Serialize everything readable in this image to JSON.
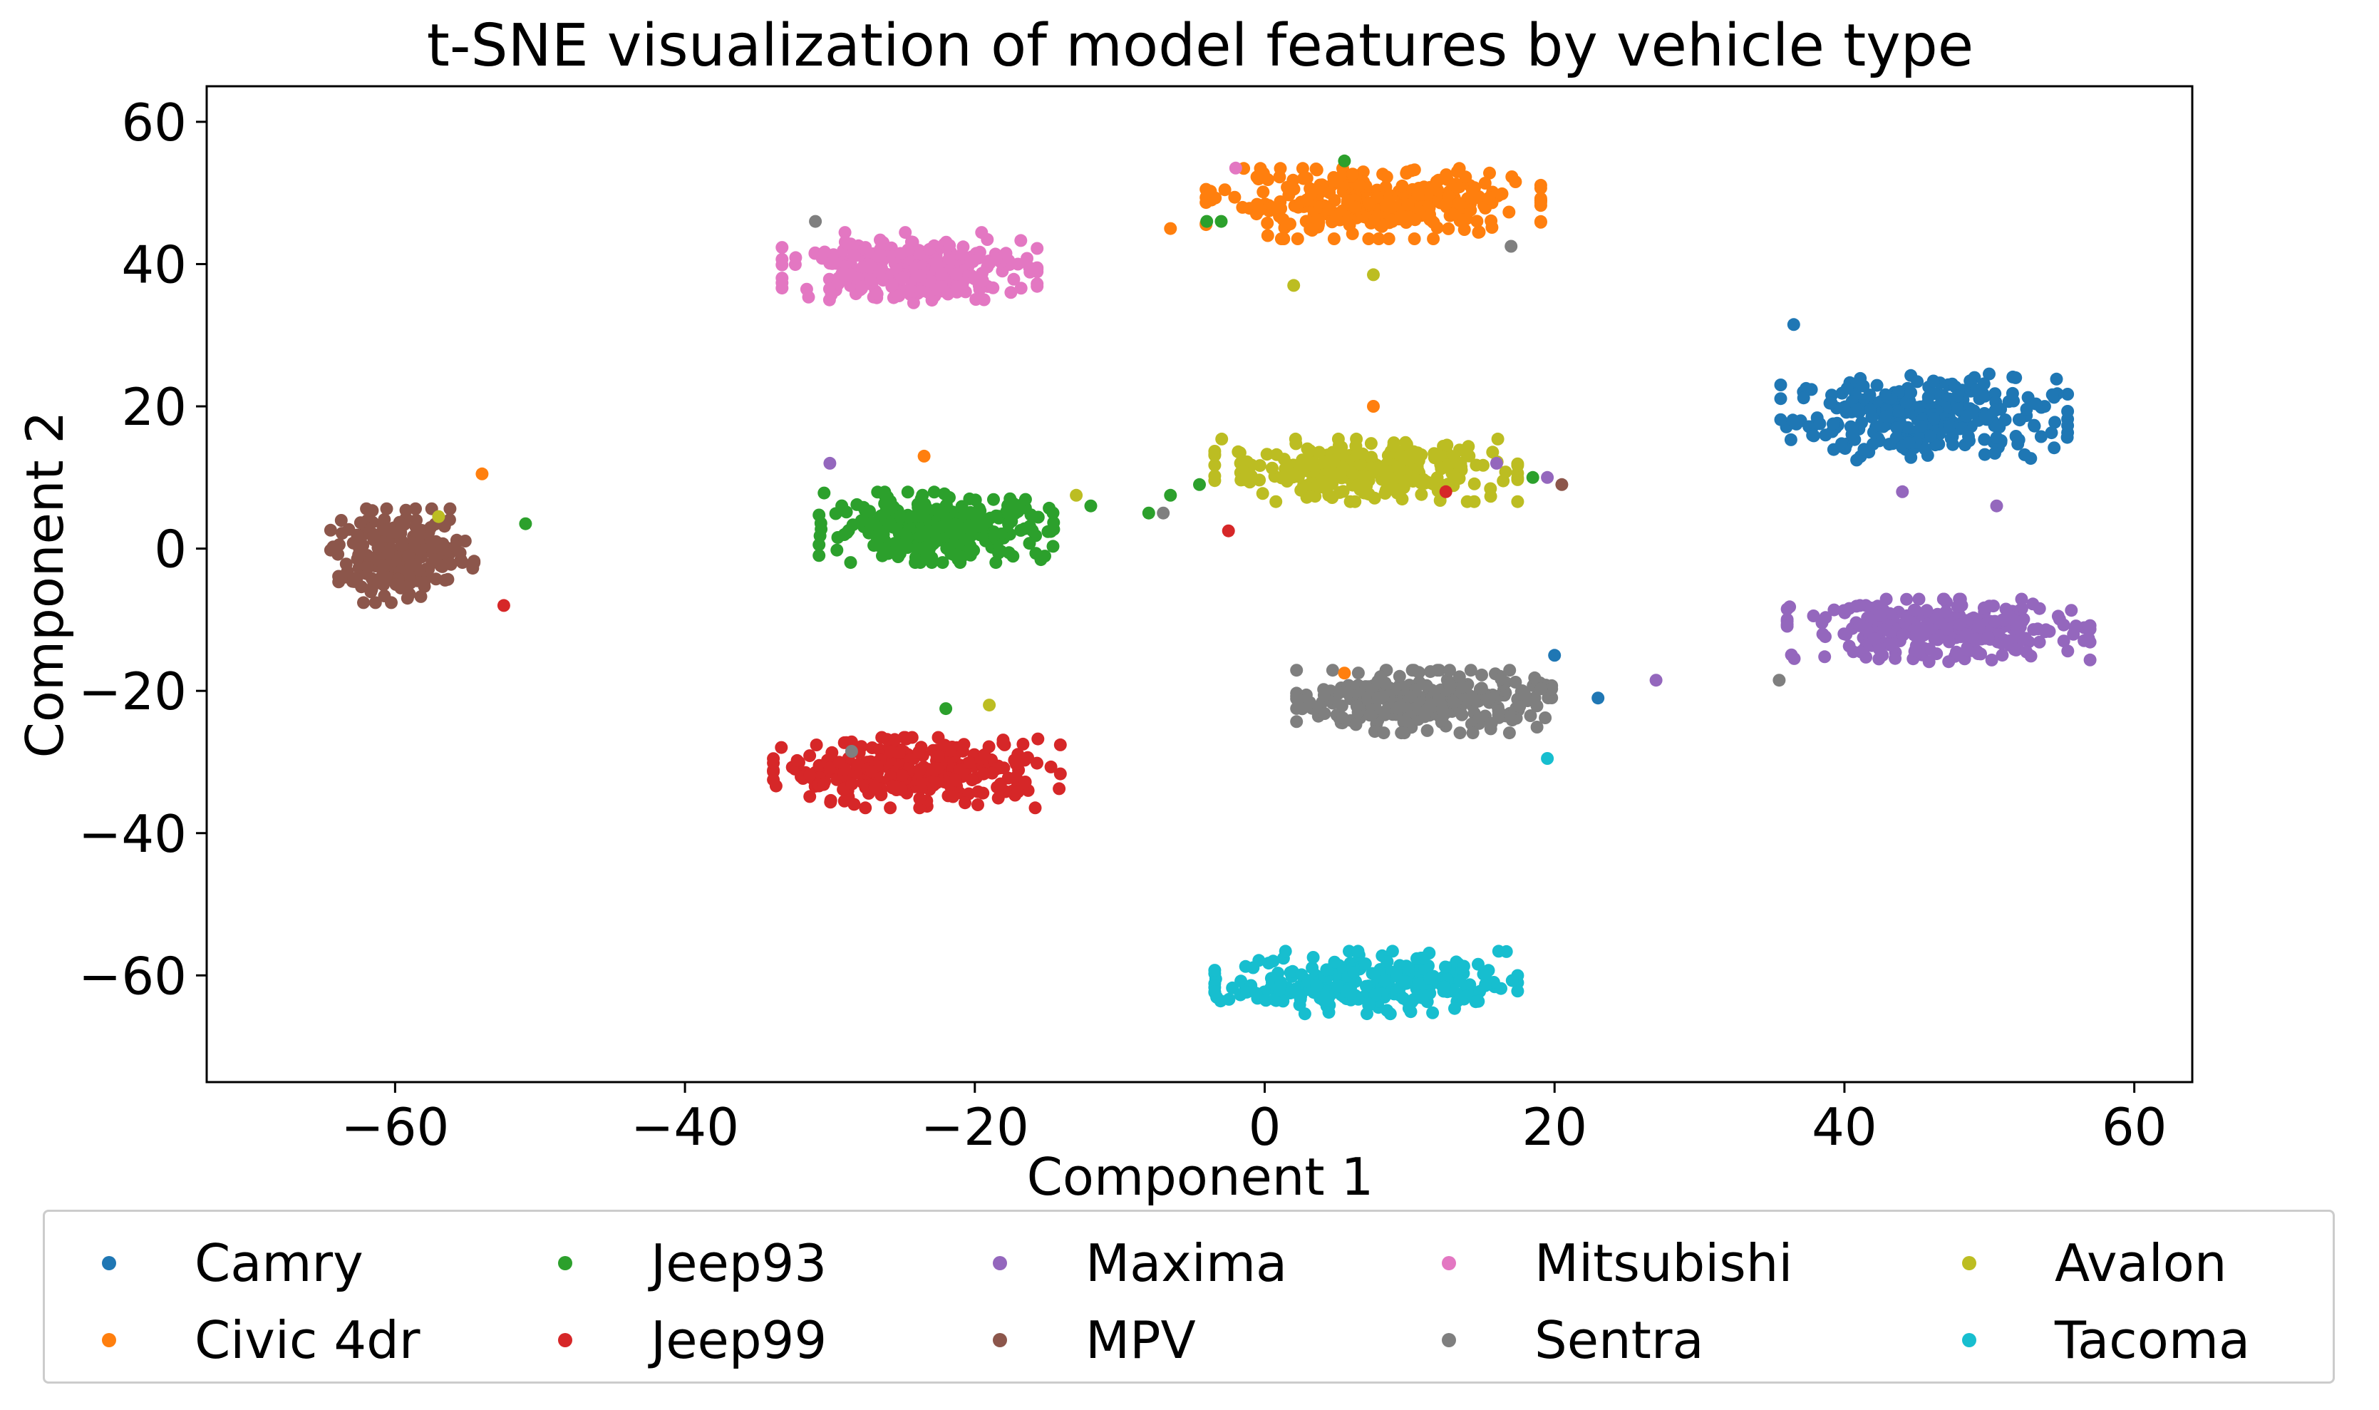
{
  "chart_data": {
    "type": "scatter",
    "title": "t-SNE visualization of model features by vehicle type",
    "xlabel": "Component 1",
    "ylabel": "Component 2",
    "xlim": [
      -73,
      64
    ],
    "ylim": [
      -75,
      65
    ],
    "xticks": [
      -60,
      -40,
      -20,
      0,
      20,
      40,
      60
    ],
    "yticks": [
      -60,
      -40,
      -20,
      0,
      20,
      40,
      60
    ],
    "xtick_labels": [
      "−60",
      "−40",
      "−20",
      "0",
      "20",
      "40",
      "60"
    ],
    "ytick_labels": [
      "−60",
      "−40",
      "−20",
      "0",
      "20",
      "40",
      "60"
    ],
    "grid": false,
    "legend_position": "bottom-center",
    "series": [
      {
        "name": "Camry",
        "color": "#1f77b4",
        "cluster": {
          "cx": 45.5,
          "cy": 18.5,
          "sx": 9.0,
          "sy": 5.5,
          "n": 300
        }
      },
      {
        "name": "Civic 4dr",
        "color": "#ff7f0e",
        "cluster": {
          "cx": 7.5,
          "cy": 48.5,
          "sx": 10.5,
          "sy": 4.5,
          "n": 330
        }
      },
      {
        "name": "Jeep93",
        "color": "#2ca02c",
        "cluster": {
          "cx": -22.5,
          "cy": 3.0,
          "sx": 7.5,
          "sy": 4.5,
          "n": 300
        }
      },
      {
        "name": "Jeep99",
        "color": "#d62728",
        "cluster": {
          "cx": -24.0,
          "cy": -31.5,
          "sx": 9.0,
          "sy": 4.5,
          "n": 300
        }
      },
      {
        "name": "Maxima",
        "color": "#9467bd",
        "cluster": {
          "cx": 46.5,
          "cy": -11.5,
          "sx": 9.5,
          "sy": 4.0,
          "n": 300
        }
      },
      {
        "name": "MPV",
        "color": "#8c564b",
        "cluster": {
          "cx": -59.5,
          "cy": -1.0,
          "sx": 4.5,
          "sy": 6.0,
          "n": 230
        }
      },
      {
        "name": "Mitsubishi",
        "color": "#e377c2",
        "cluster": {
          "cx": -24.5,
          "cy": 39.5,
          "sx": 8.0,
          "sy": 4.5,
          "n": 280
        }
      },
      {
        "name": "Sentra",
        "color": "#7f7f7f",
        "cluster": {
          "cx": 11.0,
          "cy": -21.5,
          "sx": 8.0,
          "sy": 4.0,
          "n": 310
        }
      },
      {
        "name": "Avalon",
        "color": "#bcbd22",
        "cluster": {
          "cx": 7.0,
          "cy": 11.0,
          "sx": 9.5,
          "sy": 4.0,
          "n": 300
        }
      },
      {
        "name": "Tacoma",
        "color": "#17becf",
        "cluster": {
          "cx": 7.0,
          "cy": -61.0,
          "sx": 9.5,
          "sy": 4.0,
          "n": 260
        }
      }
    ],
    "stray_points": [
      {
        "series": "Jeep93",
        "x": -3.0,
        "y": 46.0
      },
      {
        "series": "Jeep93",
        "x": -4.0,
        "y": 46.0
      },
      {
        "series": "Jeep93",
        "x": 5.5,
        "y": 54.5
      },
      {
        "series": "Jeep93",
        "x": -12.0,
        "y": 6.0
      },
      {
        "series": "Jeep93",
        "x": -8.0,
        "y": 5.0
      },
      {
        "series": "Jeep93",
        "x": -6.5,
        "y": 7.5
      },
      {
        "series": "Jeep93",
        "x": -4.5,
        "y": 9.0
      },
      {
        "series": "Jeep93",
        "x": 18.5,
        "y": 10.0
      },
      {
        "series": "Jeep93",
        "x": -51.0,
        "y": 3.5
      },
      {
        "series": "Jeep93",
        "x": -22.0,
        "y": -22.5
      },
      {
        "series": "Civic 4dr",
        "x": -6.5,
        "y": 45.0
      },
      {
        "series": "Civic 4dr",
        "x": -23.5,
        "y": 13.0
      },
      {
        "series": "Civic 4dr",
        "x": 7.5,
        "y": 20.0
      },
      {
        "series": "Civic 4dr",
        "x": -54.0,
        "y": 10.5
      },
      {
        "series": "Civic 4dr",
        "x": 5.5,
        "y": -17.5
      },
      {
        "series": "Mitsubishi",
        "x": -2.0,
        "y": 53.5
      },
      {
        "series": "Sentra",
        "x": -31.0,
        "y": 46.0
      },
      {
        "series": "Sentra",
        "x": 17.0,
        "y": 42.5
      },
      {
        "series": "Sentra",
        "x": -7.0,
        "y": 5.0
      },
      {
        "series": "Sentra",
        "x": 35.5,
        "y": -18.5
      },
      {
        "series": "Sentra",
        "x": -28.5,
        "y": -28.5
      },
      {
        "series": "Avalon",
        "x": 2.0,
        "y": 37.0
      },
      {
        "series": "Avalon",
        "x": 7.5,
        "y": 38.5
      },
      {
        "series": "Avalon",
        "x": -13.0,
        "y": 7.5
      },
      {
        "series": "Avalon",
        "x": -57.0,
        "y": 4.5
      },
      {
        "series": "Avalon",
        "x": -19.0,
        "y": -22.0
      },
      {
        "series": "Maxima",
        "x": -30.0,
        "y": 12.0
      },
      {
        "series": "Maxima",
        "x": 16.0,
        "y": 12.0
      },
      {
        "series": "Maxima",
        "x": 19.5,
        "y": 10.0
      },
      {
        "series": "Maxima",
        "x": 27.0,
        "y": -18.5
      },
      {
        "series": "Maxima",
        "x": 44.0,
        "y": 8.0
      },
      {
        "series": "Maxima",
        "x": 50.5,
        "y": 6.0
      },
      {
        "series": "MPV",
        "x": 20.5,
        "y": 9.0
      },
      {
        "series": "Jeep99",
        "x": 12.5,
        "y": 8.0
      },
      {
        "series": "Jeep99",
        "x": -2.5,
        "y": 2.5
      },
      {
        "series": "Jeep99",
        "x": -52.5,
        "y": -8.0
      },
      {
        "series": "Camry",
        "x": 36.5,
        "y": 31.5
      },
      {
        "series": "Camry",
        "x": 20.0,
        "y": -15.0
      },
      {
        "series": "Camry",
        "x": 23.0,
        "y": -21.0
      },
      {
        "series": "Tacoma",
        "x": 19.5,
        "y": -29.5
      }
    ]
  }
}
